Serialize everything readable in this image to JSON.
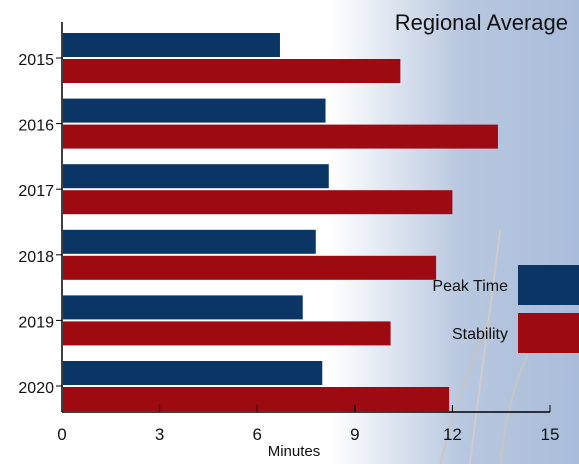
{
  "chart_data": {
    "type": "bar",
    "orientation": "horizontal",
    "title": "Regional Average",
    "xlabel": "Minutes",
    "ylabel": "",
    "categories": [
      "2015",
      "2016",
      "2017",
      "2018",
      "2019",
      "2020"
    ],
    "xlim": [
      0,
      15
    ],
    "xticks": [
      0,
      3,
      6,
      9,
      12,
      15
    ],
    "grid": false,
    "legend_position": "right",
    "series": [
      {
        "name": "Peak Time",
        "color": "#0b3565",
        "values": [
          6.7,
          8.1,
          8.2,
          7.8,
          7.4,
          8.0
        ]
      },
      {
        "name": "Stability",
        "color": "#9e0a12",
        "values": [
          10.4,
          13.4,
          12.0,
          11.5,
          10.1,
          11.9
        ]
      }
    ]
  }
}
